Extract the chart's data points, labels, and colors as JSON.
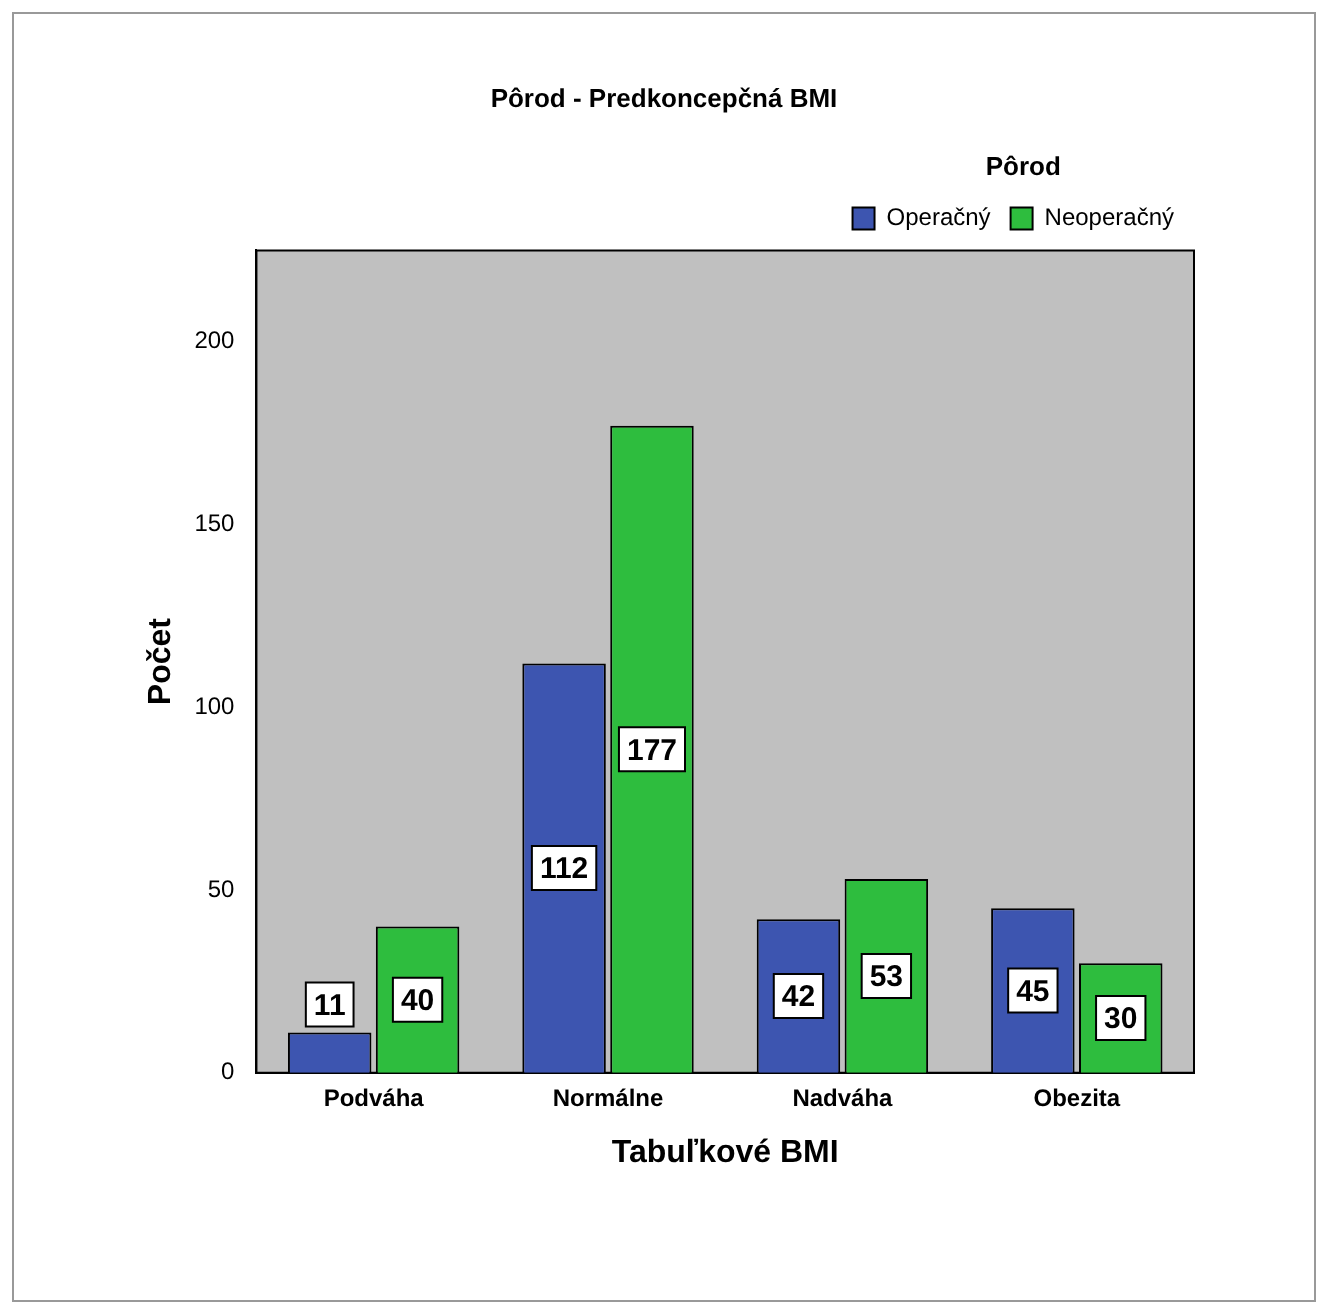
{
  "chart_data": {
    "type": "bar",
    "title": "Pôrod - Predkoncepčná BMI",
    "xlabel": "Tabuľkové BMI",
    "ylabel": "Počet",
    "legend_title": "Pôrod",
    "categories": [
      "Podváha",
      "Normálne",
      "Nadváha",
      "Obezita"
    ],
    "series": [
      {
        "name": "Operačný",
        "color": "#3d55b0",
        "values": [
          11,
          112,
          42,
          45
        ]
      },
      {
        "name": "Neoperačný",
        "color": "#2ebd3e",
        "values": [
          40,
          177,
          53,
          30
        ]
      }
    ],
    "ylim": [
      0,
      225
    ],
    "yticks": [
      0,
      50,
      100,
      150,
      200
    ],
    "grid": false,
    "legend": "top right",
    "data_labels": true
  }
}
